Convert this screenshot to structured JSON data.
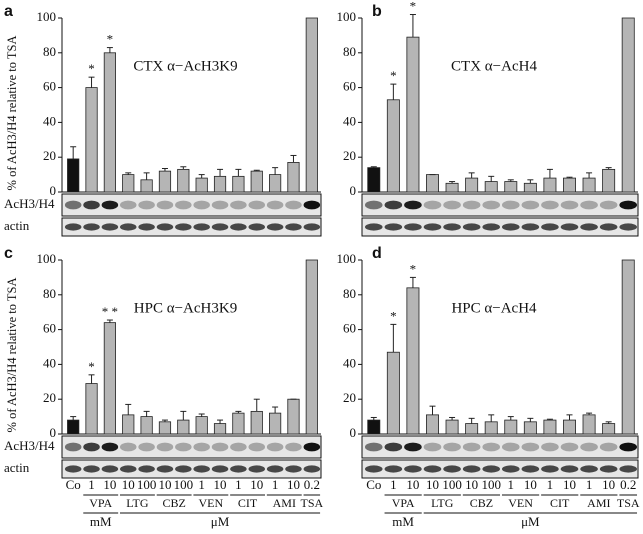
{
  "chart_data": [
    {
      "type": "bar",
      "panel": "a",
      "title": "CTX α−AcH3K9",
      "y_label": "% of AcH3/H4 relative to TSA",
      "blot_labels": [
        "AcH3/H4",
        "actin"
      ],
      "values": [
        19,
        60,
        80,
        10,
        7,
        12,
        13,
        8,
        9,
        9,
        12,
        10,
        17,
        100
      ],
      "errors": [
        7,
        6,
        3,
        1,
        4,
        1.5,
        1.5,
        2,
        4,
        4,
        0.5,
        4,
        4,
        null
      ],
      "stars": [
        null,
        "*",
        "*",
        null,
        null,
        null,
        null,
        null,
        null,
        null,
        null,
        null,
        null,
        null
      ],
      "ylim": [
        0,
        100
      ],
      "yticks": [
        0,
        20,
        40,
        60,
        80,
        100
      ],
      "color": "#b5b5b5",
      "control_color": "#111111"
    },
    {
      "type": "bar",
      "panel": "b",
      "title": "CTX α−AcH4",
      "values": [
        14,
        53,
        89,
        10,
        5,
        8,
        6,
        6,
        5,
        8,
        8,
        8,
        13,
        100
      ],
      "errors": [
        0.5,
        9,
        13,
        0,
        1,
        3,
        3,
        1,
        2,
        5,
        0.5,
        3,
        1,
        null
      ],
      "stars": [
        null,
        "*",
        "*",
        null,
        null,
        null,
        null,
        null,
        null,
        null,
        null,
        null,
        null,
        null
      ],
      "ylim": [
        0,
        100
      ],
      "yticks": [
        0,
        20,
        40,
        60,
        80,
        100
      ],
      "color": "#b5b5b5",
      "control_color": "#111111"
    },
    {
      "type": "bar",
      "panel": "c",
      "title": "HPC α−AcH3K9",
      "y_label": "% of AcH3/H4 relative to TSA",
      "blot_labels": [
        "AcH3/H4",
        "actin"
      ],
      "categories": [
        "Co",
        "1",
        "10",
        "10",
        "100",
        "10",
        "100",
        "1",
        "10",
        "1",
        "10",
        "1",
        "10",
        "0.2"
      ],
      "groups": [
        "VPA",
        "LTG",
        "CBZ",
        "VEN",
        "CIT",
        "AMI",
        "TSA"
      ],
      "units": [
        "mM",
        "μM"
      ],
      "values": [
        8,
        29,
        64,
        11,
        10,
        7,
        8,
        10,
        6,
        12,
        13,
        12,
        20,
        100
      ],
      "errors": [
        2,
        5,
        1.5,
        6,
        3,
        1,
        5,
        1.5,
        2,
        1,
        7,
        3.5,
        0,
        null
      ],
      "stars": [
        null,
        "*",
        "* *",
        null,
        null,
        null,
        null,
        null,
        null,
        null,
        null,
        null,
        null,
        null
      ],
      "ylim": [
        0,
        100
      ],
      "yticks": [
        0,
        20,
        40,
        60,
        80,
        100
      ],
      "color": "#b5b5b5",
      "control_color": "#111111"
    },
    {
      "type": "bar",
      "panel": "d",
      "title": "HPC α−AcH4",
      "categories": [
        "Co",
        "1",
        "10",
        "10",
        "100",
        "10",
        "100",
        "1",
        "10",
        "1",
        "10",
        "1",
        "10",
        "0.2"
      ],
      "groups": [
        "VPA",
        "LTG",
        "CBZ",
        "VEN",
        "CIT",
        "AMI",
        "TSA"
      ],
      "units": [
        "mM",
        "μM"
      ],
      "values": [
        8,
        47,
        84,
        11,
        8,
        6,
        7,
        8,
        7,
        8,
        8,
        11,
        6,
        100
      ],
      "errors": [
        1.5,
        16,
        6,
        5,
        1.5,
        3,
        4,
        2,
        2,
        0.5,
        3,
        1,
        1,
        null
      ],
      "stars": [
        null,
        "*",
        "*",
        null,
        null,
        null,
        null,
        null,
        null,
        null,
        null,
        null,
        null,
        null
      ],
      "ylim": [
        0,
        100
      ],
      "yticks": [
        0,
        20,
        40,
        60,
        80,
        100
      ],
      "color": "#b5b5b5",
      "control_color": "#111111"
    }
  ]
}
